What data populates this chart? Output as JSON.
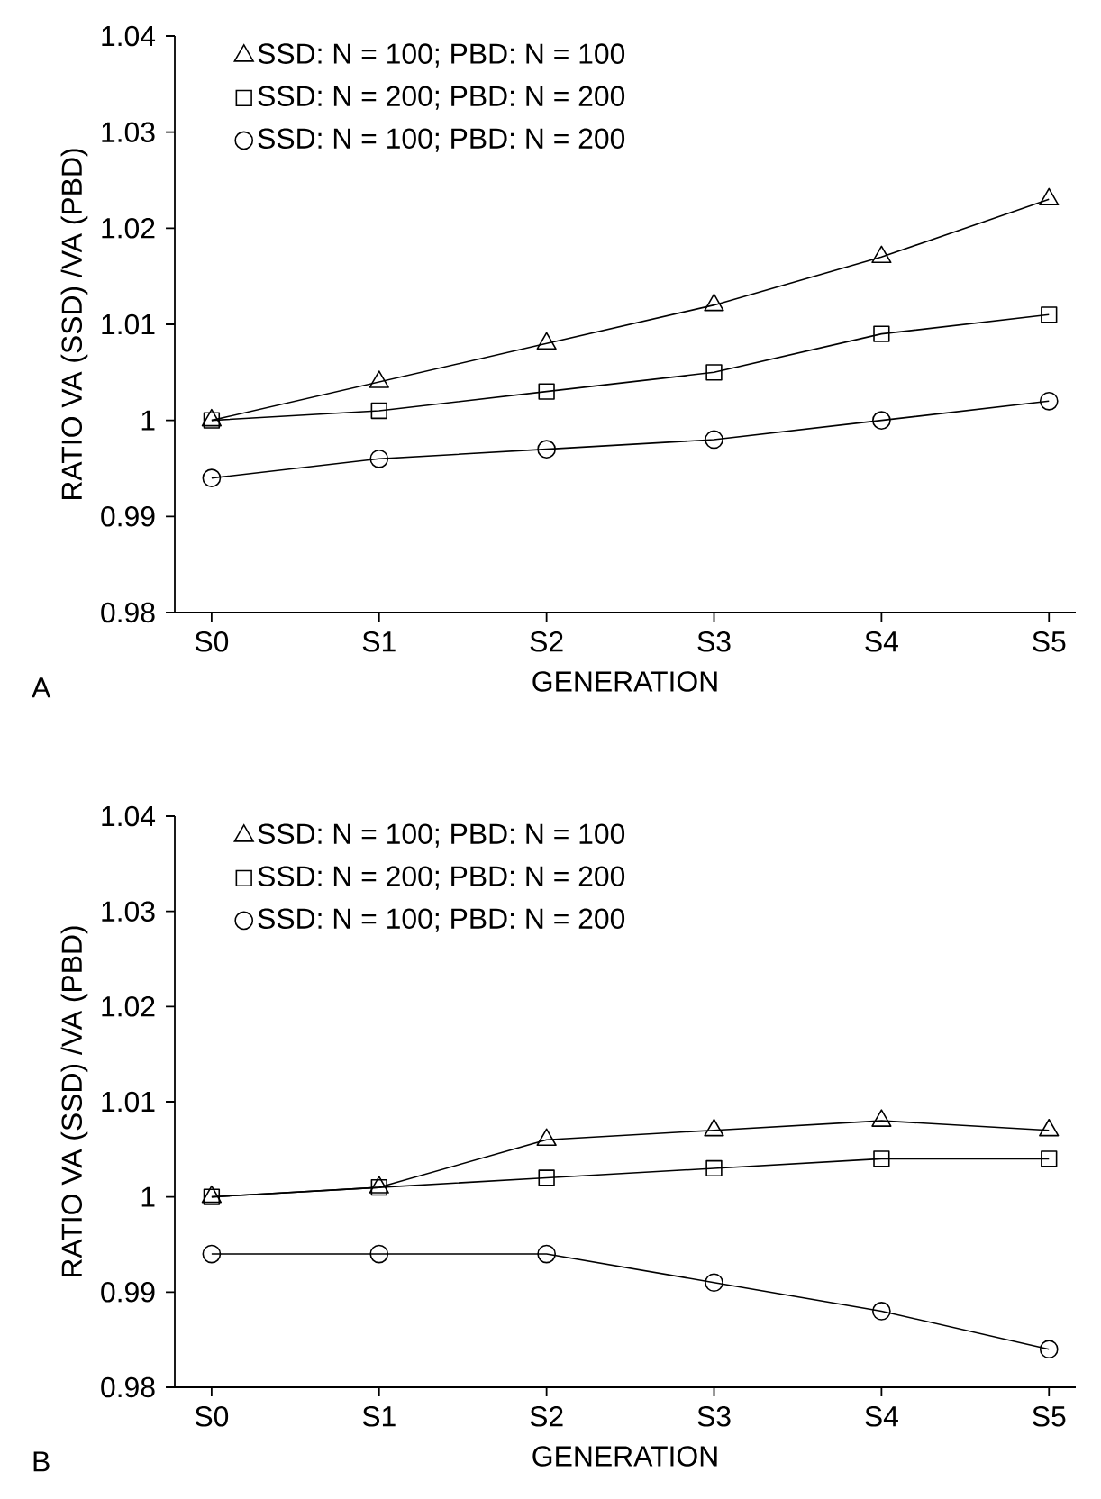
{
  "chart_data": [
    {
      "type": "line",
      "xlabel": "GENERATION",
      "ylabel": "RATIO VA (SSD) /VA (PBD)",
      "categories": [
        "S0",
        "S1",
        "S2",
        "S3",
        "S4",
        "S5"
      ],
      "ylim": [
        0.98,
        1.04
      ],
      "yticks": [
        0.98,
        0.99,
        1,
        1.01,
        1.02,
        1.03,
        1.04
      ],
      "legend": "top left",
      "grid": false,
      "line_style": "solid",
      "annotations": [
        "A"
      ],
      "series": [
        {
          "name": "SSD:  N = 100;  PBD:  N = 100",
          "color": "#000000",
          "marker": "triangle",
          "values": [
            1.0,
            1.004,
            1.008,
            1.012,
            1.017,
            1.023
          ]
        },
        {
          "name": "SSD:  N = 200;  PBD:  N = 200",
          "color": "#000000",
          "marker": "square",
          "values": [
            1.0,
            1.001,
            1.003,
            1.005,
            1.009,
            1.011
          ]
        },
        {
          "name": "SSD:  N = 100;  PBD:  N = 200",
          "color": "#000000",
          "marker": "circle",
          "values": [
            0.994,
            0.996,
            0.997,
            0.998,
            1.0,
            1.002
          ]
        }
      ]
    },
    {
      "type": "line",
      "xlabel": "GENERATION",
      "ylabel": "RATIO VA (SSD) /VA (PBD)",
      "categories": [
        "S0",
        "S1",
        "S2",
        "S3",
        "S4",
        "S5"
      ],
      "ylim": [
        0.98,
        1.04
      ],
      "yticks": [
        0.98,
        0.99,
        1,
        1.01,
        1.02,
        1.03,
        1.04
      ],
      "legend": "top left",
      "grid": false,
      "line_style": "solid",
      "annotations": [
        "B"
      ],
      "series": [
        {
          "name": "SSD:  N = 100;  PBD:  N = 100",
          "color": "#000000",
          "marker": "triangle",
          "values": [
            1.0,
            1.001,
            1.006,
            1.007,
            1.008,
            1.007
          ]
        },
        {
          "name": "SSD:  N = 200;  PBD:  N = 200",
          "color": "#000000",
          "marker": "square",
          "values": [
            1.0,
            1.001,
            1.002,
            1.003,
            1.004,
            1.004
          ]
        },
        {
          "name": "SSD:  N = 100;  PBD:  N = 200",
          "color": "#000000",
          "marker": "circle",
          "values": [
            0.994,
            0.994,
            0.994,
            0.991,
            0.988,
            0.984
          ]
        }
      ]
    }
  ]
}
